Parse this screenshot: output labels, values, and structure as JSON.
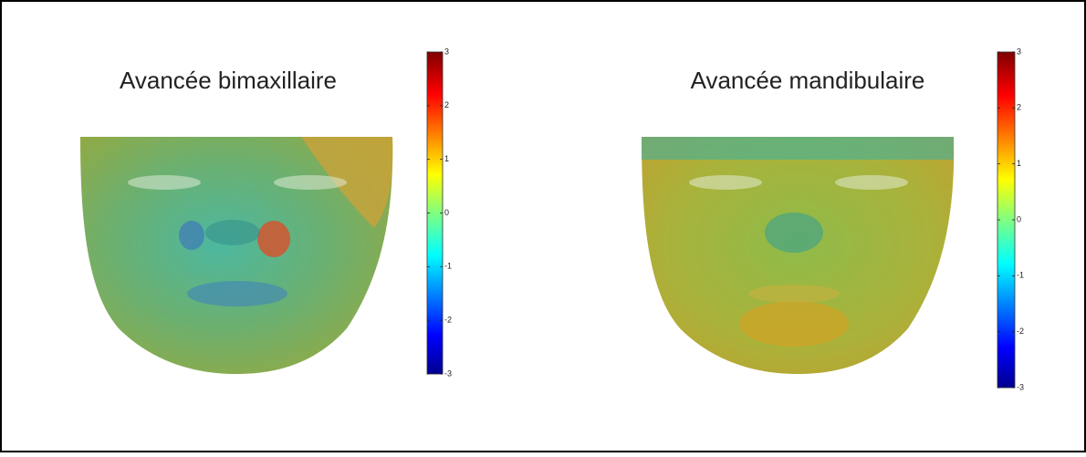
{
  "panels": [
    {
      "title": "Avancée bimaxillaire",
      "colorbar": {
        "lim": [
          -3,
          3
        ],
        "ticks": [
          -3,
          -2,
          -1,
          0,
          1,
          2,
          3
        ]
      }
    },
    {
      "title": "Avancée mandibulaire",
      "colorbar": {
        "lim": [
          -3,
          3
        ],
        "ticks": [
          -3,
          -2,
          -1,
          0,
          1,
          2,
          3
        ]
      }
    }
  ]
}
